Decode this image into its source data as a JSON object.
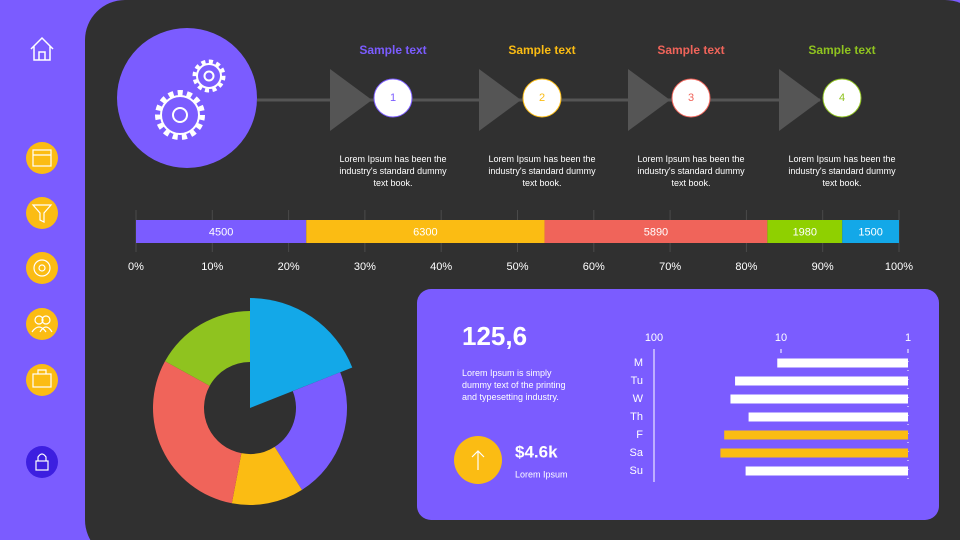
{
  "steps": [
    {
      "title": "Sample text",
      "number": 1,
      "color": "#7b5cff",
      "text": "Lorem Ipsum has been the industry's standard dummy text book."
    },
    {
      "title": "Sample text",
      "number": 2,
      "color": "#fbbc13",
      "text": "Lorem Ipsum has been the industry's standard dummy text book."
    },
    {
      "title": "Sample text",
      "number": 3,
      "color": "#f0645a",
      "text": "Lorem Ipsum has been the industry's standard dummy text book."
    },
    {
      "title": "Sample text",
      "number": 4,
      "color": "#8fc31f",
      "text": "Lorem Ipsum has been the industry's standard dummy text book."
    }
  ],
  "chart_data": [
    {
      "type": "stacked-percent-bar",
      "values": [
        4500,
        6300,
        5890,
        1980,
        1500
      ],
      "colors": [
        "#7b5cff",
        "#fbbc13",
        "#f0645a",
        "#8fd000",
        "#13a8e8"
      ],
      "xlim": [
        0,
        100
      ],
      "xticks": [
        {
          "value": 0,
          "label": "0%"
        },
        {
          "value": 10,
          "label": "10%"
        },
        {
          "value": 20,
          "label": "20%"
        },
        {
          "value": 30,
          "label": "30%"
        },
        {
          "value": 40,
          "label": "40%"
        },
        {
          "value": 50,
          "label": "50%"
        },
        {
          "value": 60,
          "label": "60%"
        },
        {
          "value": 70,
          "label": "70%"
        },
        {
          "value": 80,
          "label": "80%"
        },
        {
          "value": 90,
          "label": "90%"
        },
        {
          "value": 100,
          "label": "100%"
        }
      ],
      "grid": true
    },
    {
      "type": "donut",
      "values": [
        19,
        22,
        12,
        30,
        17
      ],
      "colors": [
        "#13a8e8",
        "#7b5cff",
        "#fbbc13",
        "#f0645a",
        "#8fc31f"
      ],
      "highlight_index": 0
    },
    {
      "type": "log-bar",
      "categories": [
        "M",
        "Tu",
        "W",
        "Th",
        "F",
        "Sa",
        "Su"
      ],
      "values": [
        10.7,
        23,
        25,
        18,
        28,
        30,
        19
      ],
      "colors": [
        "#ffffff",
        "#ffffff",
        "#ffffff",
        "#ffffff",
        "#fbbc13",
        "#fbbc13",
        "#ffffff"
      ],
      "xlim": [
        100,
        1
      ],
      "xticks": [
        100,
        10,
        1
      ],
      "log": true
    }
  ],
  "stats": {
    "value": "125,6",
    "text": "Lorem Ipsum is simply dummy text of the printing and typesetting industry.",
    "amount": "$4.6k",
    "amount_label": "Lorem Ipsum"
  }
}
